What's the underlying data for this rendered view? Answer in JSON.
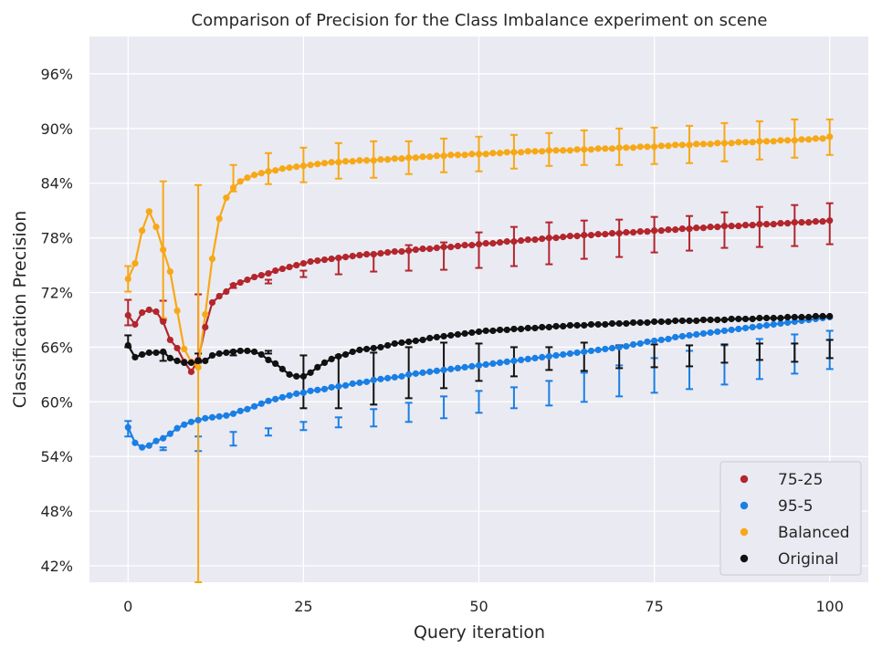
{
  "chart_data": {
    "type": "line",
    "title": "Comparison of Precision for the Class Imbalance experiment on scene",
    "xlabel": "Query iteration",
    "ylabel": "Classification Precision",
    "xlim": [
      -5.5,
      105.5
    ],
    "ylim": [
      40.2,
      100.1
    ],
    "x_ticks": [
      0,
      25,
      50,
      75,
      100
    ],
    "y_ticks": [
      42,
      48,
      54,
      60,
      66,
      72,
      78,
      84,
      90,
      96
    ],
    "y_tick_suffix": "%",
    "grid": true,
    "background": "#eaeaf2",
    "legend": {
      "placement": "bottom-right",
      "entries": [
        "75-25",
        "95-5",
        "Balanced",
        "Original"
      ]
    },
    "error_bar_x": [
      0,
      5,
      10,
      15,
      20,
      25,
      30,
      35,
      40,
      45,
      50,
      55,
      60,
      65,
      70,
      75,
      80,
      85,
      90,
      95,
      100
    ],
    "series": [
      {
        "name": "75-25",
        "color": "#b2262c",
        "y": [
          69.5,
          68.5,
          69.8,
          70.1,
          69.9,
          68.8,
          66.8,
          65.9,
          64.4,
          63.3,
          64.6,
          68.2,
          70.9,
          71.6,
          72.1,
          72.8,
          73.1,
          73.4,
          73.7,
          73.9,
          74.1,
          74.4,
          74.6,
          74.8,
          75.0,
          75.2,
          75.4,
          75.5,
          75.6,
          75.7,
          75.8,
          75.9,
          76.0,
          76.1,
          76.2,
          76.2,
          76.3,
          76.4,
          76.5,
          76.5,
          76.6,
          76.7,
          76.8,
          76.8,
          76.9,
          77.0,
          77.0,
          77.1,
          77.2,
          77.2,
          77.3,
          77.4,
          77.4,
          77.5,
          77.6,
          77.6,
          77.7,
          77.8,
          77.8,
          77.9,
          78.0,
          78.0,
          78.1,
          78.2,
          78.2,
          78.3,
          78.3,
          78.4,
          78.4,
          78.5,
          78.5,
          78.6,
          78.6,
          78.7,
          78.7,
          78.8,
          78.8,
          78.9,
          78.9,
          79.0,
          79.0,
          79.1,
          79.1,
          79.2,
          79.2,
          79.3,
          79.3,
          79.3,
          79.4,
          79.4,
          79.5,
          79.5,
          79.5,
          79.6,
          79.6,
          79.7,
          79.7,
          79.7,
          79.8,
          79.8,
          79.9
        ],
        "err_upper": [
          71.2,
          71.1,
          71.8,
          72.9,
          73.4,
          74.4,
          75.8,
          76.2,
          77.2,
          77.5,
          78.6,
          79.2,
          79.7,
          79.9,
          80.0,
          80.3,
          80.4,
          80.8,
          81.4,
          81.6,
          81.8
        ],
        "err_lower": [
          68.4,
          69.0,
          64.6,
          72.5,
          73.0,
          73.7,
          74.0,
          74.3,
          74.4,
          74.5,
          74.7,
          74.9,
          75.1,
          75.7,
          75.9,
          76.4,
          76.6,
          76.9,
          77.0,
          77.1,
          77.3
        ]
      },
      {
        "name": "95-5",
        "color": "#1a7fe4",
        "y": [
          57.2,
          55.5,
          55.0,
          55.2,
          55.7,
          56.0,
          56.5,
          57.1,
          57.5,
          57.8,
          58.0,
          58.2,
          58.3,
          58.4,
          58.5,
          58.7,
          59.0,
          59.2,
          59.5,
          59.8,
          60.1,
          60.3,
          60.5,
          60.7,
          60.9,
          61.0,
          61.2,
          61.3,
          61.4,
          61.6,
          61.7,
          61.8,
          62.0,
          62.1,
          62.2,
          62.4,
          62.5,
          62.6,
          62.7,
          62.8,
          63.0,
          63.1,
          63.2,
          63.3,
          63.4,
          63.5,
          63.6,
          63.7,
          63.8,
          63.9,
          64.0,
          64.1,
          64.2,
          64.3,
          64.4,
          64.5,
          64.6,
          64.7,
          64.8,
          64.9,
          65.0,
          65.1,
          65.2,
          65.3,
          65.4,
          65.5,
          65.6,
          65.7,
          65.8,
          65.9,
          66.0,
          66.1,
          66.3,
          66.4,
          66.6,
          66.7,
          66.8,
          66.9,
          67.1,
          67.2,
          67.3,
          67.4,
          67.5,
          67.6,
          67.7,
          67.8,
          67.9,
          68.0,
          68.1,
          68.2,
          68.3,
          68.4,
          68.5,
          68.6,
          68.7,
          68.8,
          68.9,
          69.0,
          69.1,
          69.2,
          69.3
        ],
        "err_upper": [
          57.9,
          55.0,
          56.2,
          56.7,
          57.1,
          57.8,
          58.3,
          59.2,
          59.9,
          60.6,
          61.2,
          61.6,
          62.3,
          63.2,
          64.0,
          64.8,
          65.6,
          66.2,
          66.9,
          67.4,
          67.8
        ],
        "err_lower": [
          56.2,
          54.7,
          54.6,
          55.2,
          56.3,
          56.9,
          57.2,
          57.3,
          57.8,
          58.2,
          58.8,
          59.3,
          59.6,
          60.0,
          60.6,
          61.0,
          61.4,
          61.9,
          62.5,
          63.1,
          63.6
        ]
      },
      {
        "name": "Balanced",
        "color": "#f7a816",
        "y": [
          73.5,
          75.2,
          78.8,
          80.9,
          79.2,
          76.7,
          74.3,
          70.0,
          65.8,
          64.4,
          63.8,
          69.6,
          75.7,
          80.1,
          82.4,
          83.5,
          84.2,
          84.6,
          84.9,
          85.1,
          85.3,
          85.4,
          85.6,
          85.7,
          85.8,
          85.9,
          86.0,
          86.1,
          86.2,
          86.3,
          86.3,
          86.4,
          86.4,
          86.5,
          86.5,
          86.5,
          86.6,
          86.6,
          86.7,
          86.7,
          86.8,
          86.8,
          86.9,
          86.9,
          87.0,
          87.0,
          87.1,
          87.1,
          87.1,
          87.2,
          87.2,
          87.2,
          87.3,
          87.3,
          87.4,
          87.4,
          87.4,
          87.5,
          87.5,
          87.5,
          87.6,
          87.6,
          87.6,
          87.6,
          87.7,
          87.7,
          87.7,
          87.8,
          87.8,
          87.8,
          87.9,
          87.9,
          87.9,
          88.0,
          88.0,
          88.0,
          88.1,
          88.1,
          88.2,
          88.2,
          88.2,
          88.3,
          88.3,
          88.3,
          88.4,
          88.4,
          88.4,
          88.5,
          88.5,
          88.5,
          88.6,
          88.6,
          88.6,
          88.7,
          88.7,
          88.7,
          88.8,
          88.8,
          88.9,
          88.9,
          89.1
        ],
        "err_upper": [
          74.9,
          84.2,
          83.8,
          86.0,
          87.3,
          87.9,
          88.4,
          88.6,
          88.6,
          88.9,
          89.1,
          89.3,
          89.5,
          89.8,
          90.0,
          90.1,
          90.3,
          90.6,
          90.8,
          91.0,
          91.0
        ],
        "err_lower": [
          72.1,
          69.2,
          40.2,
          83.1,
          83.9,
          84.1,
          84.5,
          84.6,
          85.0,
          85.2,
          85.3,
          85.6,
          85.9,
          86.0,
          86.0,
          86.1,
          86.2,
          86.4,
          86.6,
          86.8,
          87.1
        ]
      },
      {
        "name": "Original",
        "color": "#111111",
        "y": [
          66.2,
          64.9,
          65.2,
          65.4,
          65.4,
          65.5,
          64.8,
          64.5,
          64.3,
          64.3,
          64.5,
          64.5,
          65.1,
          65.3,
          65.4,
          65.5,
          65.6,
          65.6,
          65.5,
          65.2,
          64.6,
          64.2,
          63.6,
          63.0,
          62.8,
          62.8,
          63.2,
          63.8,
          64.3,
          64.7,
          65.0,
          65.2,
          65.5,
          65.7,
          65.8,
          65.9,
          66.0,
          66.2,
          66.4,
          66.5,
          66.6,
          66.7,
          66.8,
          67.0,
          67.1,
          67.2,
          67.3,
          67.4,
          67.5,
          67.6,
          67.7,
          67.8,
          67.8,
          67.9,
          67.9,
          68.0,
          68.0,
          68.1,
          68.1,
          68.2,
          68.2,
          68.3,
          68.3,
          68.4,
          68.4,
          68.4,
          68.5,
          68.5,
          68.5,
          68.6,
          68.6,
          68.6,
          68.7,
          68.7,
          68.7,
          68.8,
          68.8,
          68.8,
          68.9,
          68.9,
          68.9,
          68.9,
          69.0,
          69.0,
          69.0,
          69.0,
          69.1,
          69.1,
          69.1,
          69.1,
          69.2,
          69.2,
          69.2,
          69.2,
          69.3,
          69.3,
          69.3,
          69.3,
          69.4,
          69.4,
          69.4
        ],
        "err_upper": [
          67.3,
          65.4,
          65.3,
          65.6,
          65.3,
          65.1,
          65.1,
          65.4,
          66.0,
          66.5,
          66.4,
          66.0,
          66.0,
          66.5,
          66.2,
          66.3,
          66.2,
          66.3,
          66.4,
          66.4,
          66.8
        ],
        "err_lower": [
          66.0,
          64.5,
          64.3,
          65.1,
          65.6,
          59.3,
          59.3,
          59.7,
          60.4,
          61.5,
          62.3,
          62.8,
          63.5,
          63.4,
          63.7,
          63.8,
          63.9,
          64.3,
          64.6,
          64.4,
          64.8
        ]
      }
    ]
  }
}
